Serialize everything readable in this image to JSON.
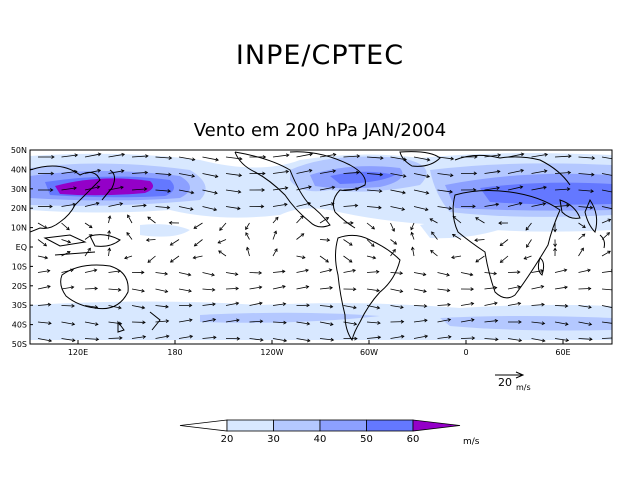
{
  "header": {
    "title": "INPE/CPTEC",
    "subtitle": "Vento em 200 hPa JAN/2004"
  },
  "map": {
    "lat_labels": [
      "50N",
      "40N",
      "30N",
      "20N",
      "10N",
      "EQ",
      "10S",
      "20S",
      "30S",
      "40S",
      "50S"
    ],
    "lon_labels": [
      "120E",
      "180",
      "120W",
      "60W",
      "0",
      "60E"
    ]
  },
  "reference_vector": {
    "value": "20",
    "unit": "m/s"
  },
  "colorbar": {
    "ticks": [
      "20",
      "30",
      "40",
      "50",
      "60"
    ],
    "unit": "m/s",
    "colors": [
      "#ffffff",
      "#d8e8ff",
      "#b4c8ff",
      "#8ca0ff",
      "#6478ff",
      "#9400c8"
    ]
  }
}
